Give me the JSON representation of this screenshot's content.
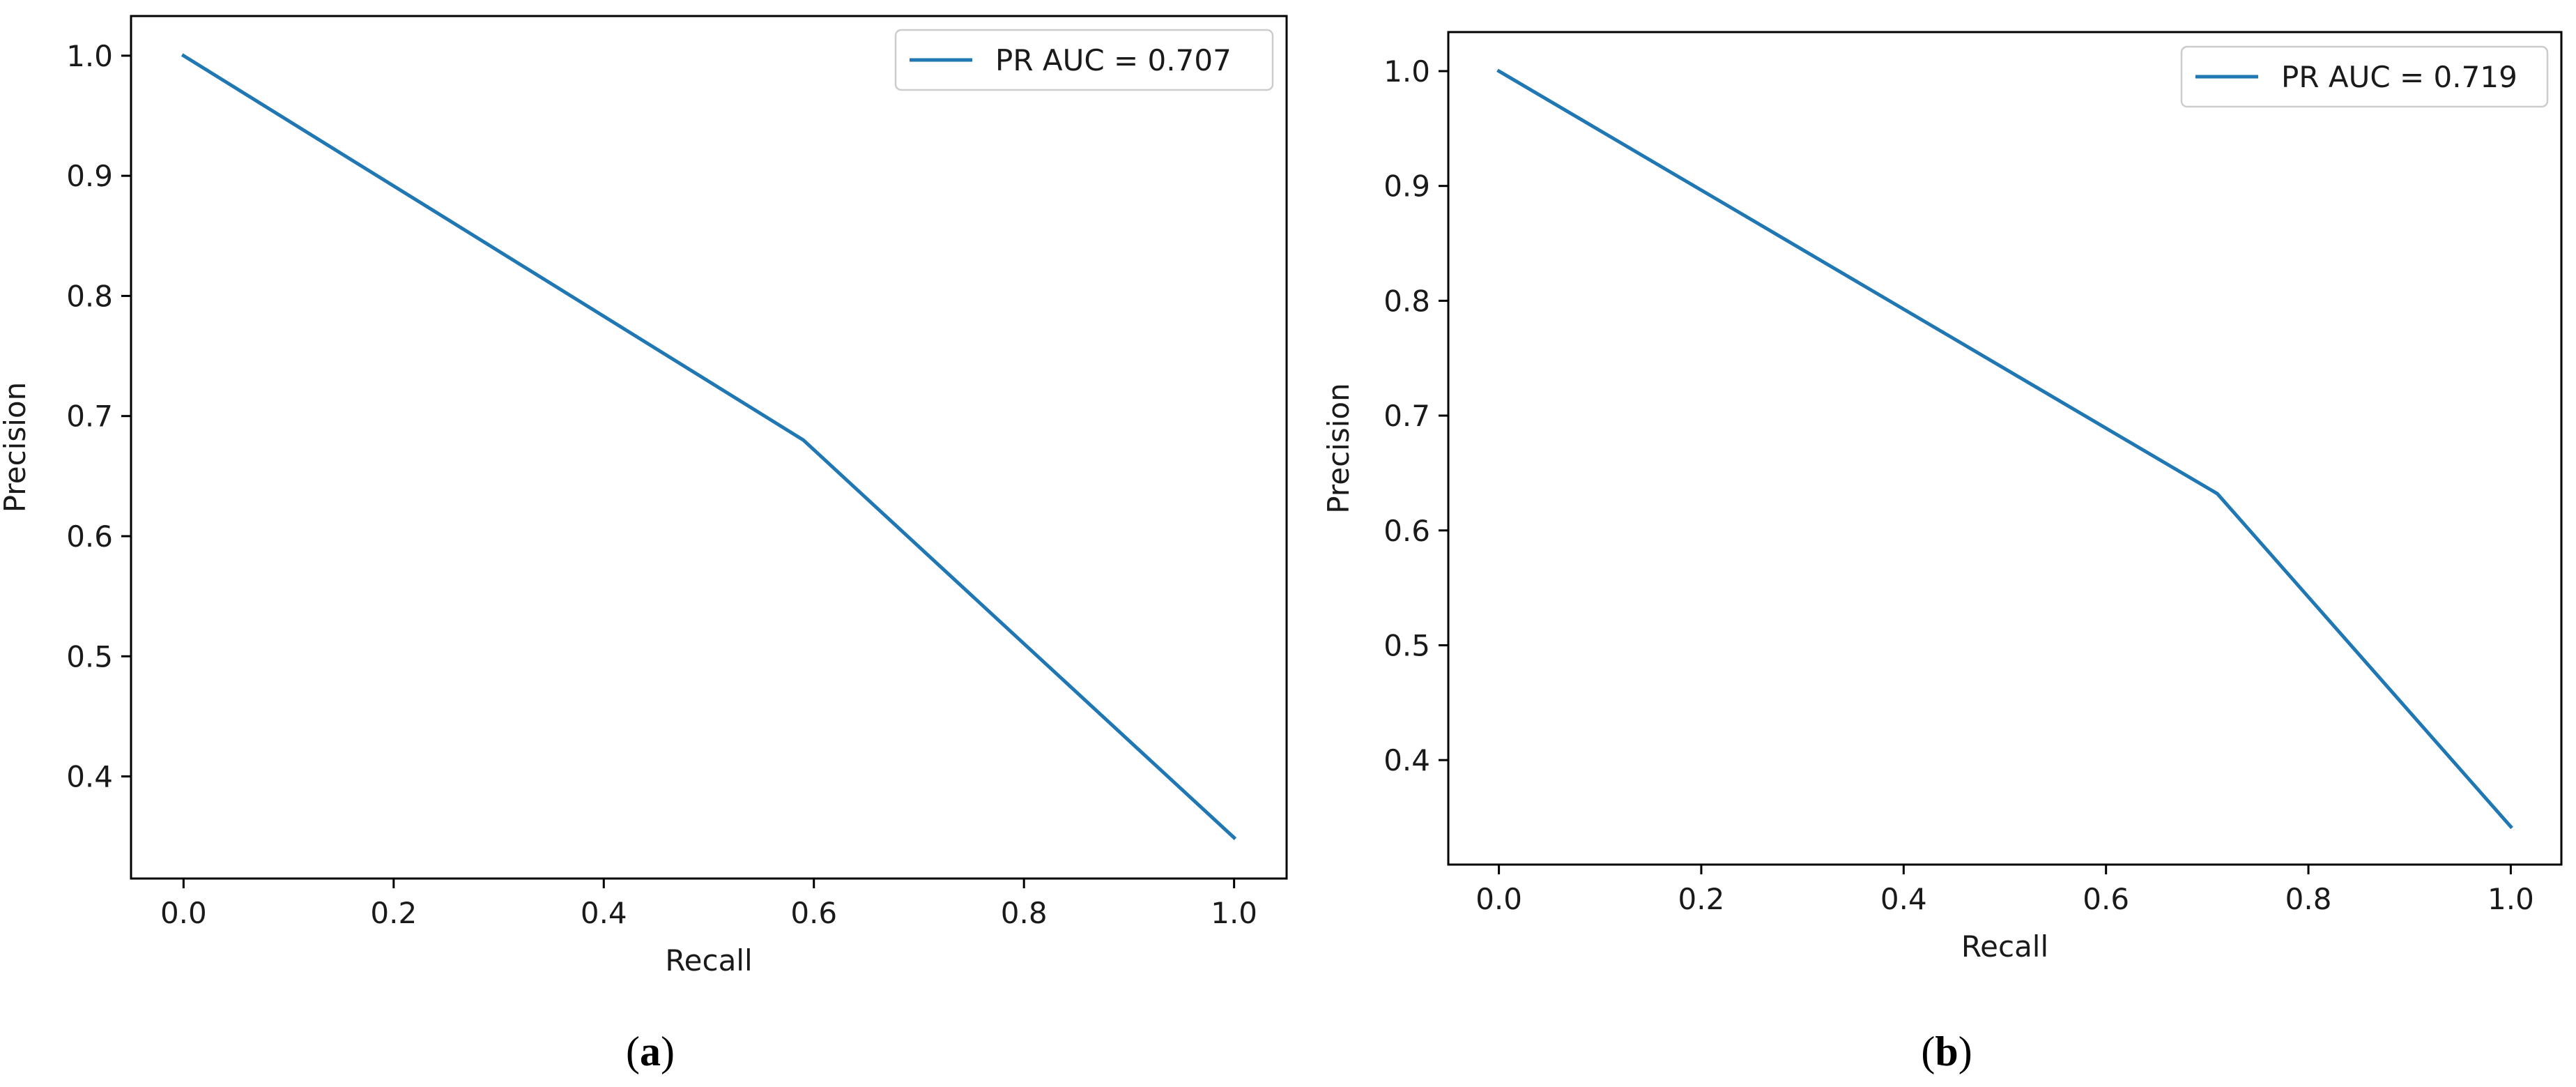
{
  "chart_data": [
    {
      "type": "line",
      "xlabel": "Recall",
      "ylabel": "Precision",
      "xlim": [
        -0.05,
        1.05
      ],
      "ylim": [
        0.315,
        1.033
      ],
      "xticks": [
        0.0,
        0.2,
        0.4,
        0.6,
        0.8,
        1.0
      ],
      "xtick_labels": [
        "0.0",
        "0.2",
        "0.4",
        "0.6",
        "0.8",
        "1.0"
      ],
      "yticks": [
        0.4,
        0.5,
        0.6,
        0.7,
        0.8,
        0.9,
        1.0
      ],
      "ytick_labels": [
        "0.4",
        "0.5",
        "0.6",
        "0.7",
        "0.8",
        "0.9",
        "1.0"
      ],
      "grid": false,
      "legend_position": "top-right",
      "series": [
        {
          "name": "PR AUC = 0.707",
          "color": "#1f77b4",
          "x": [
            0.0,
            0.59,
            1.0
          ],
          "y": [
            1.0,
            0.68,
            0.349
          ]
        }
      ],
      "caption": "a"
    },
    {
      "type": "line",
      "xlabel": "Recall",
      "ylabel": "Precision",
      "xlim": [
        -0.05,
        1.05
      ],
      "ylim": [
        0.309,
        1.034
      ],
      "xticks": [
        0.0,
        0.2,
        0.4,
        0.6,
        0.8,
        1.0
      ],
      "xtick_labels": [
        "0.0",
        "0.2",
        "0.4",
        "0.6",
        "0.8",
        "1.0"
      ],
      "yticks": [
        0.4,
        0.5,
        0.6,
        0.7,
        0.8,
        0.9,
        1.0
      ],
      "ytick_labels": [
        "0.4",
        "0.5",
        "0.6",
        "0.7",
        "0.8",
        "0.9",
        "1.0"
      ],
      "grid": false,
      "legend_position": "top-right",
      "series": [
        {
          "name": "PR AUC = 0.719",
          "color": "#1f77b4",
          "x": [
            0.0,
            0.71,
            1.0
          ],
          "y": [
            1.0,
            0.632,
            0.342
          ]
        }
      ],
      "caption": "b"
    }
  ]
}
